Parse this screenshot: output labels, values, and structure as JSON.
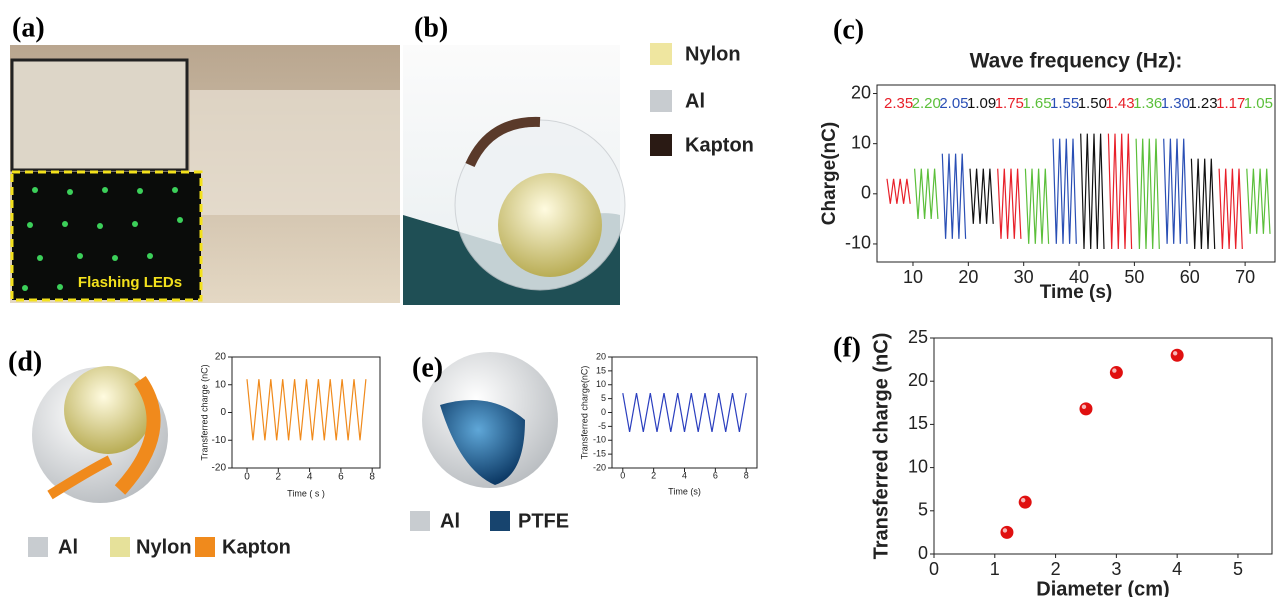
{
  "panels": {
    "a": {
      "label": "(a)",
      "inset_text": "Flashing LEDs"
    },
    "b": {
      "label": "(b)",
      "legend": [
        "Nylon",
        "Al",
        "Kapton"
      ]
    },
    "c": {
      "label": "(c)"
    },
    "d": {
      "label": "(d)",
      "legend": [
        "Al",
        "Nylon",
        "Kapton"
      ]
    },
    "e": {
      "label": "(e)",
      "legend": [
        "Al",
        "PTFE"
      ]
    },
    "f": {
      "label": "(f)"
    }
  },
  "chart_data": [
    {
      "type": "line",
      "title": "Wave frequency (Hz):",
      "x_label": "Time (s)",
      "y_label": "Charge(nC)",
      "xlim": [
        3.5,
        75.4
      ],
      "ylim": [
        -13.6,
        21.7
      ],
      "xticks": [
        10,
        20,
        30,
        40,
        50,
        60,
        70
      ],
      "yticks": [
        -10,
        0,
        10,
        20
      ],
      "legend": "top",
      "series": [
        {
          "name": "2.35",
          "color": "#e8202a",
          "x": [
            5.3,
            5.9,
            6.5,
            7.1,
            7.7,
            8.3,
            8.9,
            9.5
          ],
          "values": [
            3,
            -2,
            3,
            -2,
            3,
            -2,
            3,
            -2
          ]
        },
        {
          "name": "2.20",
          "color": "#5bbf3a",
          "x": [
            10.3,
            10.9,
            11.5,
            12.1,
            12.7,
            13.3,
            13.9,
            14.5
          ],
          "values": [
            5,
            -5,
            5,
            -5,
            5,
            -5,
            5,
            -5
          ]
        },
        {
          "name": "2.05",
          "color": "#2a4fb5",
          "x": [
            15.3,
            15.9,
            16.5,
            17.1,
            17.7,
            18.3,
            18.9,
            19.5
          ],
          "values": [
            8,
            -9,
            8,
            -9,
            8,
            -9,
            8,
            -9
          ]
        },
        {
          "name": "1.09",
          "color": "#111111",
          "x": [
            20.3,
            20.9,
            21.5,
            22.1,
            22.7,
            23.3,
            23.9,
            24.5
          ],
          "values": [
            5,
            -6,
            5,
            -6,
            5,
            -6,
            5,
            -6
          ]
        },
        {
          "name": "1.75",
          "color": "#e8202a",
          "x": [
            25.3,
            25.9,
            26.5,
            27.1,
            27.7,
            28.3,
            28.9,
            29.5
          ],
          "values": [
            5,
            -9,
            5,
            -9,
            5,
            -9,
            5,
            -9
          ]
        },
        {
          "name": "1.65",
          "color": "#5bbf3a",
          "x": [
            30.3,
            30.9,
            31.5,
            32.1,
            32.7,
            33.3,
            33.9,
            34.5
          ],
          "values": [
            5,
            -10,
            5,
            -10,
            5,
            -10,
            5,
            -10
          ]
        },
        {
          "name": "1.55",
          "color": "#2a4fb5",
          "x": [
            35.3,
            35.9,
            36.5,
            37.1,
            37.7,
            38.3,
            38.9,
            39.5
          ],
          "values": [
            11,
            -10,
            11,
            -10,
            11,
            -10,
            11,
            -10
          ]
        },
        {
          "name": "1.50",
          "color": "#111111",
          "x": [
            40.3,
            40.9,
            41.5,
            42.1,
            42.7,
            43.3,
            43.9,
            44.5
          ],
          "values": [
            12,
            -11,
            12,
            -11,
            12,
            -11,
            12,
            -11
          ]
        },
        {
          "name": "1.43",
          "color": "#e8202a",
          "x": [
            45.3,
            45.9,
            46.5,
            47.1,
            47.7,
            48.3,
            48.9,
            49.5
          ],
          "values": [
            12,
            -11,
            12,
            -11,
            12,
            -11,
            12,
            -11
          ]
        },
        {
          "name": "1.36",
          "color": "#5bbf3a",
          "x": [
            50.3,
            50.9,
            51.5,
            52.1,
            52.7,
            53.3,
            53.9,
            54.5
          ],
          "values": [
            11,
            -11,
            11,
            -11,
            11,
            -11,
            11,
            -11
          ]
        },
        {
          "name": "1.30",
          "color": "#2a4fb5",
          "x": [
            55.3,
            55.9,
            56.5,
            57.1,
            57.7,
            58.3,
            58.9,
            59.5
          ],
          "values": [
            11,
            -10,
            11,
            -10,
            11,
            -10,
            11,
            -10
          ]
        },
        {
          "name": "1.23",
          "color": "#111111",
          "x": [
            60.3,
            60.9,
            61.5,
            62.1,
            62.7,
            63.3,
            63.9,
            64.5
          ],
          "values": [
            7,
            -11,
            7,
            -11,
            7,
            -11,
            7,
            -11
          ]
        },
        {
          "name": "1.17",
          "color": "#e8202a",
          "x": [
            65.3,
            65.9,
            66.5,
            67.1,
            67.7,
            68.3,
            68.9,
            69.5
          ],
          "values": [
            5,
            -11,
            5,
            -11,
            5,
            -11,
            5,
            -11
          ]
        },
        {
          "name": "1.05",
          "color": "#5bbf3a",
          "x": [
            70.3,
            70.9,
            71.5,
            72.1,
            72.7,
            73.3,
            73.9,
            74.5
          ],
          "values": [
            5,
            -8,
            5,
            -8,
            5,
            -8,
            5,
            -8
          ]
        }
      ]
    },
    {
      "type": "line",
      "x_label": "Time ( s )",
      "y_label": "Transferred charge (nC)",
      "xlim": [
        -0.96,
        8.5
      ],
      "ylim": [
        -20,
        20
      ],
      "xticks": [
        0,
        2,
        4,
        6,
        8
      ],
      "yticks": [
        -20,
        -10,
        0,
        10,
        20
      ],
      "series": [
        {
          "color": "#f08a1c",
          "x": [
            0,
            0.38,
            0.76,
            1.14,
            1.52,
            1.9,
            2.28,
            2.66,
            3.04,
            3.42,
            3.8,
            4.18,
            4.56,
            4.94,
            5.32,
            5.7,
            6.08,
            6.46,
            6.84,
            7.22,
            7.6
          ],
          "values": [
            12,
            -10,
            12,
            -10,
            12,
            -10,
            12,
            -10,
            12,
            -10,
            12,
            -10,
            12,
            -10,
            12,
            -10,
            12,
            -10,
            12,
            -10,
            12
          ]
        }
      ]
    },
    {
      "type": "line",
      "x_label": "Time (s)",
      "y_label": "Transferred charge(nC)",
      "xlim": [
        -0.7,
        8.7
      ],
      "ylim": [
        -20,
        20
      ],
      "xticks": [
        0,
        2,
        4,
        6,
        8
      ],
      "yticks": [
        -20,
        -15,
        -10,
        -5,
        0,
        5,
        10,
        15,
        20
      ],
      "series": [
        {
          "color": "#2b3fbf",
          "x": [
            0,
            0.44,
            0.89,
            1.33,
            1.78,
            2.22,
            2.67,
            3.11,
            3.56,
            4,
            4.44,
            4.89,
            5.33,
            5.78,
            6.22,
            6.67,
            7.11,
            7.56,
            8
          ],
          "values": [
            7,
            -7,
            7,
            -7,
            7,
            -7,
            7,
            -7,
            7,
            -7,
            7,
            -7,
            7,
            -7,
            7,
            -7,
            7,
            -7,
            7
          ]
        }
      ]
    },
    {
      "type": "scatter",
      "x_label": "Diameter (cm)",
      "y_label": "Transferred charge (nC)",
      "xlim": [
        0,
        5.56
      ],
      "ylim": [
        0,
        25
      ],
      "xticks": [
        0,
        1,
        2,
        3,
        4,
        5
      ],
      "yticks": [
        0,
        5,
        10,
        15,
        20,
        25
      ],
      "series": [
        {
          "color": "#e01010",
          "x": [
            1.2,
            1.5,
            2.5,
            3,
            4
          ],
          "values": [
            2.5,
            6,
            16.8,
            21,
            23
          ]
        }
      ]
    }
  ]
}
